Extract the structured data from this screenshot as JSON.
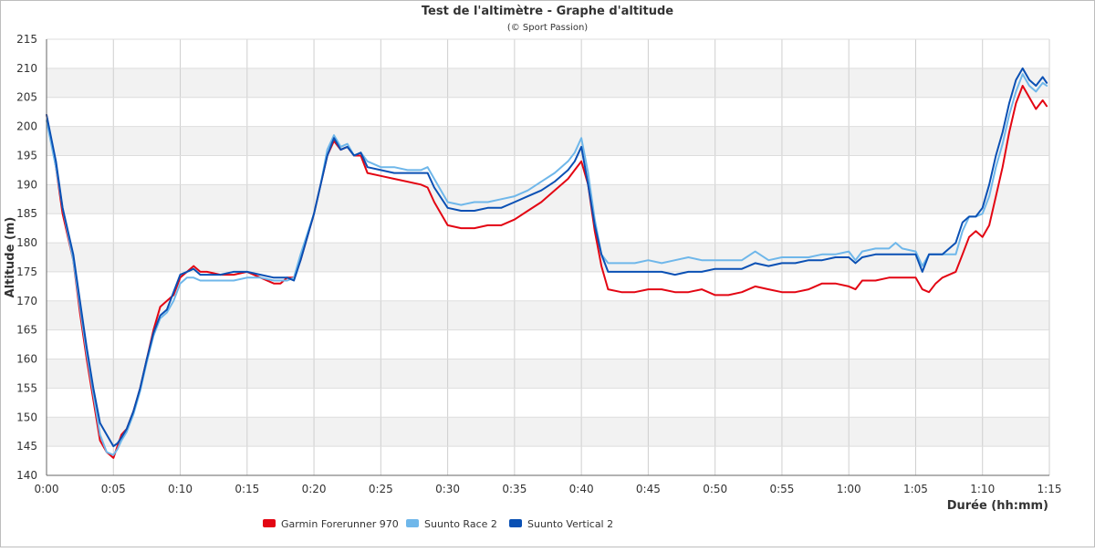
{
  "chart_data": {
    "type": "line",
    "title": "Test de l'altimètre - Graphe d'altitude",
    "subtitle": "(© Sport Passion)",
    "xlabel": "Durée (hh:mm)",
    "ylabel": "Altitude (m)",
    "xlim": [
      0,
      75
    ],
    "ylim": [
      140,
      215
    ],
    "x_ticks": [
      0,
      5,
      10,
      15,
      20,
      25,
      30,
      35,
      40,
      45,
      50,
      55,
      60,
      65,
      70,
      75
    ],
    "x_tick_labels": [
      "0:00",
      "0:05",
      "0:10",
      "0:15",
      "0:20",
      "0:25",
      "0:30",
      "0:35",
      "0:40",
      "0:45",
      "0:50",
      "0:55",
      "1:00",
      "1:05",
      "1:10",
      "1:15"
    ],
    "y_ticks": [
      140,
      145,
      150,
      155,
      160,
      165,
      170,
      175,
      180,
      185,
      190,
      195,
      200,
      205,
      210,
      215
    ],
    "grid": true,
    "legend": "bottom-left",
    "series": [
      {
        "name": "Garmin Forerunner 970",
        "color": "#e30613",
        "points": [
          [
            0,
            202
          ],
          [
            0.7,
            193
          ],
          [
            1.2,
            185
          ],
          [
            2,
            177
          ],
          [
            2.5,
            168
          ],
          [
            3,
            160
          ],
          [
            3.5,
            153
          ],
          [
            4,
            146
          ],
          [
            4.5,
            144
          ],
          [
            5,
            143
          ],
          [
            5.3,
            145
          ],
          [
            5.6,
            147
          ],
          [
            6,
            148
          ],
          [
            6.5,
            151
          ],
          [
            7,
            155
          ],
          [
            7.5,
            160
          ],
          [
            8,
            165
          ],
          [
            8.5,
            169
          ],
          [
            9,
            170
          ],
          [
            9.5,
            171
          ],
          [
            10,
            174
          ],
          [
            10.5,
            175
          ],
          [
            11,
            176
          ],
          [
            11.5,
            175
          ],
          [
            12,
            175
          ],
          [
            13,
            174.5
          ],
          [
            14,
            174.5
          ],
          [
            15,
            175
          ],
          [
            16,
            174
          ],
          [
            17,
            173
          ],
          [
            17.5,
            173
          ],
          [
            18,
            174
          ],
          [
            18.5,
            174
          ],
          [
            19,
            177
          ],
          [
            20,
            185
          ],
          [
            20.5,
            190
          ],
          [
            21,
            195
          ],
          [
            21.5,
            197.5
          ],
          [
            22,
            196
          ],
          [
            22.5,
            196.5
          ],
          [
            23,
            195
          ],
          [
            23.5,
            195
          ],
          [
            24,
            192
          ],
          [
            25,
            191.5
          ],
          [
            26,
            191
          ],
          [
            27,
            190.5
          ],
          [
            28,
            190
          ],
          [
            28.5,
            189.5
          ],
          [
            29,
            187
          ],
          [
            30,
            183
          ],
          [
            31,
            182.5
          ],
          [
            32,
            182.5
          ],
          [
            33,
            183
          ],
          [
            34,
            183
          ],
          [
            35,
            184
          ],
          [
            36,
            185.5
          ],
          [
            37,
            187
          ],
          [
            38,
            189
          ],
          [
            39,
            191
          ],
          [
            39.5,
            192.5
          ],
          [
            40,
            194
          ],
          [
            40.5,
            190
          ],
          [
            41,
            182
          ],
          [
            41.5,
            176
          ],
          [
            42,
            172
          ],
          [
            43,
            171.5
          ],
          [
            44,
            171.5
          ],
          [
            45,
            172
          ],
          [
            46,
            172
          ],
          [
            47,
            171.5
          ],
          [
            48,
            171.5
          ],
          [
            49,
            172
          ],
          [
            50,
            171
          ],
          [
            51,
            171
          ],
          [
            52,
            171.5
          ],
          [
            53,
            172.5
          ],
          [
            54,
            172
          ],
          [
            55,
            171.5
          ],
          [
            56,
            171.5
          ],
          [
            57,
            172
          ],
          [
            58,
            173
          ],
          [
            59,
            173
          ],
          [
            60,
            172.5
          ],
          [
            60.5,
            172
          ],
          [
            61,
            173.5
          ],
          [
            62,
            173.5
          ],
          [
            63,
            174
          ],
          [
            64,
            174
          ],
          [
            65,
            174
          ],
          [
            65.5,
            172
          ],
          [
            66,
            171.5
          ],
          [
            66.5,
            173
          ],
          [
            67,
            174
          ],
          [
            68,
            175
          ],
          [
            68.5,
            178
          ],
          [
            69,
            181
          ],
          [
            69.5,
            182
          ],
          [
            70,
            181
          ],
          [
            70.5,
            183
          ],
          [
            71,
            188
          ],
          [
            71.5,
            193
          ],
          [
            72,
            199
          ],
          [
            72.5,
            204
          ],
          [
            73,
            207
          ],
          [
            73.5,
            205
          ],
          [
            74,
            203
          ],
          [
            74.5,
            204.5
          ],
          [
            74.8,
            203.5
          ]
        ]
      },
      {
        "name": "Suunto Race 2",
        "color": "#6fb7ea",
        "points": [
          [
            0,
            201
          ],
          [
            0.7,
            193
          ],
          [
            1.2,
            186
          ],
          [
            2,
            177
          ],
          [
            2.5,
            169
          ],
          [
            3,
            161
          ],
          [
            3.5,
            154
          ],
          [
            4,
            147
          ],
          [
            4.5,
            144
          ],
          [
            5,
            143.5
          ],
          [
            5.3,
            144.5
          ],
          [
            5.6,
            146
          ],
          [
            6,
            147.5
          ],
          [
            6.5,
            150.5
          ],
          [
            7,
            154.5
          ],
          [
            7.5,
            159.5
          ],
          [
            8,
            164
          ],
          [
            8.5,
            167
          ],
          [
            9,
            168
          ],
          [
            9.5,
            170
          ],
          [
            10,
            173
          ],
          [
            10.5,
            174
          ],
          [
            11,
            174
          ],
          [
            11.5,
            173.5
          ],
          [
            12,
            173.5
          ],
          [
            13,
            173.5
          ],
          [
            14,
            173.5
          ],
          [
            15,
            174
          ],
          [
            16,
            174
          ],
          [
            17,
            173.5
          ],
          [
            18,
            173.5
          ],
          [
            18.5,
            174
          ],
          [
            19,
            178
          ],
          [
            20,
            185
          ],
          [
            20.5,
            190
          ],
          [
            21,
            196
          ],
          [
            21.5,
            198.5
          ],
          [
            22,
            196.5
          ],
          [
            22.5,
            197
          ],
          [
            23,
            195
          ],
          [
            23.5,
            195.5
          ],
          [
            24,
            194
          ],
          [
            25,
            193
          ],
          [
            26,
            193
          ],
          [
            27,
            192.5
          ],
          [
            28,
            192.5
          ],
          [
            28.5,
            193
          ],
          [
            29,
            191
          ],
          [
            30,
            187
          ],
          [
            31,
            186.5
          ],
          [
            32,
            187
          ],
          [
            33,
            187
          ],
          [
            34,
            187.5
          ],
          [
            35,
            188
          ],
          [
            36,
            189
          ],
          [
            37,
            190.5
          ],
          [
            38,
            192
          ],
          [
            39,
            194
          ],
          [
            39.5,
            195.5
          ],
          [
            40,
            198
          ],
          [
            40.5,
            192
          ],
          [
            41,
            184
          ],
          [
            41.5,
            178
          ],
          [
            42,
            176.5
          ],
          [
            43,
            176.5
          ],
          [
            44,
            176.5
          ],
          [
            45,
            177
          ],
          [
            46,
            176.5
          ],
          [
            47,
            177
          ],
          [
            48,
            177.5
          ],
          [
            49,
            177
          ],
          [
            50,
            177
          ],
          [
            51,
            177
          ],
          [
            52,
            177
          ],
          [
            53,
            178.5
          ],
          [
            54,
            177
          ],
          [
            55,
            177.5
          ],
          [
            56,
            177.5
          ],
          [
            57,
            177.5
          ],
          [
            58,
            178
          ],
          [
            59,
            178
          ],
          [
            60,
            178.5
          ],
          [
            60.5,
            177
          ],
          [
            61,
            178.5
          ],
          [
            62,
            179
          ],
          [
            63,
            179
          ],
          [
            63.5,
            180
          ],
          [
            64,
            179
          ],
          [
            65,
            178.5
          ],
          [
            65.5,
            176
          ],
          [
            66,
            178
          ],
          [
            67,
            178
          ],
          [
            68,
            178
          ],
          [
            68.5,
            182
          ],
          [
            69,
            184.5
          ],
          [
            69.5,
            184.5
          ],
          [
            70,
            185
          ],
          [
            70.5,
            188
          ],
          [
            71,
            193
          ],
          [
            71.5,
            197
          ],
          [
            72,
            202
          ],
          [
            72.5,
            206
          ],
          [
            73,
            209
          ],
          [
            73.5,
            207
          ],
          [
            74,
            206
          ],
          [
            74.5,
            207.5
          ],
          [
            74.8,
            207
          ]
        ]
      },
      {
        "name": "Suunto Vertical 2",
        "color": "#0a50b4",
        "points": [
          [
            0,
            202
          ],
          [
            0.7,
            194
          ],
          [
            1.2,
            186
          ],
          [
            2,
            178
          ],
          [
            2.5,
            170
          ],
          [
            3,
            162
          ],
          [
            3.5,
            155
          ],
          [
            4,
            149
          ],
          [
            4.5,
            147
          ],
          [
            5,
            145
          ],
          [
            5.3,
            145.5
          ],
          [
            5.6,
            146.5
          ],
          [
            6,
            148
          ],
          [
            6.5,
            151
          ],
          [
            7,
            155
          ],
          [
            7.5,
            160
          ],
          [
            8,
            164.5
          ],
          [
            8.5,
            167.5
          ],
          [
            9,
            168.5
          ],
          [
            9.5,
            171.5
          ],
          [
            10,
            174.5
          ],
          [
            10.5,
            175
          ],
          [
            11,
            175.5
          ],
          [
            11.5,
            174.5
          ],
          [
            12,
            174.5
          ],
          [
            13,
            174.5
          ],
          [
            14,
            175
          ],
          [
            15,
            175
          ],
          [
            16,
            174.5
          ],
          [
            17,
            174
          ],
          [
            18,
            174
          ],
          [
            18.5,
            173.5
          ],
          [
            19,
            177
          ],
          [
            20,
            185
          ],
          [
            20.5,
            190
          ],
          [
            21,
            195
          ],
          [
            21.5,
            198
          ],
          [
            22,
            196
          ],
          [
            22.5,
            196.5
          ],
          [
            23,
            195
          ],
          [
            23.5,
            195.5
          ],
          [
            24,
            193
          ],
          [
            25,
            192.5
          ],
          [
            26,
            192
          ],
          [
            27,
            192
          ],
          [
            28,
            192
          ],
          [
            28.5,
            192
          ],
          [
            29,
            189.5
          ],
          [
            30,
            186
          ],
          [
            31,
            185.5
          ],
          [
            32,
            185.5
          ],
          [
            33,
            186
          ],
          [
            34,
            186
          ],
          [
            35,
            187
          ],
          [
            36,
            188
          ],
          [
            37,
            189
          ],
          [
            38,
            190.5
          ],
          [
            39,
            192.5
          ],
          [
            39.5,
            194
          ],
          [
            40,
            196.5
          ],
          [
            40.5,
            190
          ],
          [
            41,
            183
          ],
          [
            41.5,
            178
          ],
          [
            42,
            175
          ],
          [
            43,
            175
          ],
          [
            44,
            175
          ],
          [
            45,
            175
          ],
          [
            46,
            175
          ],
          [
            47,
            174.5
          ],
          [
            48,
            175
          ],
          [
            49,
            175
          ],
          [
            50,
            175.5
          ],
          [
            51,
            175.5
          ],
          [
            52,
            175.5
          ],
          [
            53,
            176.5
          ],
          [
            54,
            176
          ],
          [
            55,
            176.5
          ],
          [
            56,
            176.5
          ],
          [
            57,
            177
          ],
          [
            58,
            177
          ],
          [
            59,
            177.5
          ],
          [
            60,
            177.5
          ],
          [
            60.5,
            176.5
          ],
          [
            61,
            177.5
          ],
          [
            62,
            178
          ],
          [
            63,
            178
          ],
          [
            64,
            178
          ],
          [
            65,
            178
          ],
          [
            65.5,
            175
          ],
          [
            66,
            178
          ],
          [
            67,
            178
          ],
          [
            68,
            180
          ],
          [
            68.5,
            183.5
          ],
          [
            69,
            184.5
          ],
          [
            69.5,
            184.5
          ],
          [
            70,
            186
          ],
          [
            70.5,
            190
          ],
          [
            71,
            195
          ],
          [
            71.5,
            199
          ],
          [
            72,
            204
          ],
          [
            72.5,
            208
          ],
          [
            73,
            210
          ],
          [
            73.5,
            208
          ],
          [
            74,
            207
          ],
          [
            74.5,
            208.5
          ],
          [
            74.8,
            207.5
          ]
        ]
      }
    ]
  }
}
